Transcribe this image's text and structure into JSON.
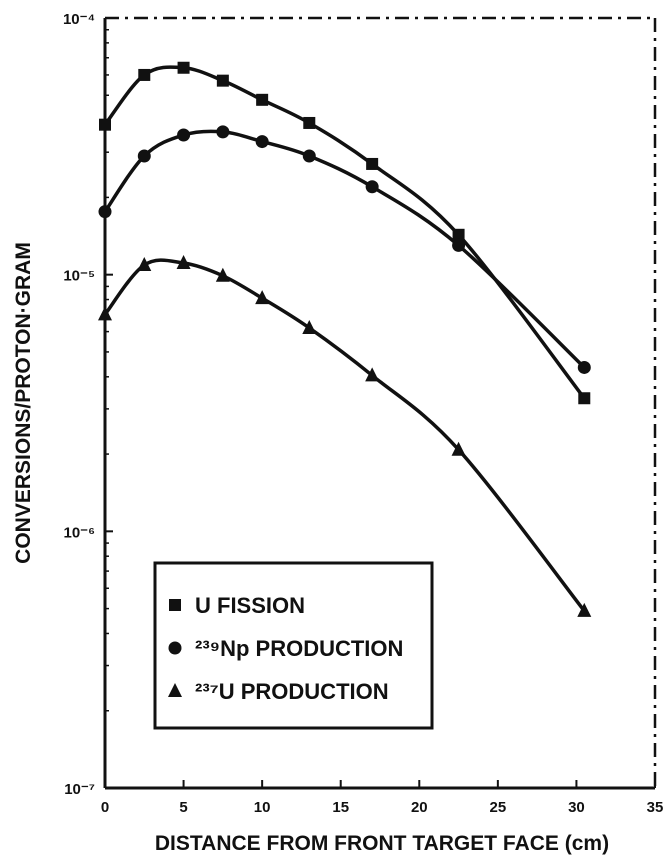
{
  "chart_data": {
    "type": "line",
    "ylabel": "CONVERSIONS/PROTON·GRAM",
    "xlabel": "DISTANCE FROM FRONT TARGET FACE (cm)",
    "log_y": true,
    "xlim": [
      0,
      35
    ],
    "xticks": [
      0,
      5,
      10,
      15,
      20,
      25,
      30,
      35
    ],
    "ylim": [
      1e-07,
      0.0001
    ],
    "yticks": [
      {
        "value": 0.0001,
        "label": "10⁻⁴"
      },
      {
        "value": 1e-05,
        "label": "10⁻⁵"
      },
      {
        "value": 1e-06,
        "label": "10⁻⁶"
      },
      {
        "value": 1e-07,
        "label": "10⁻⁷"
      }
    ],
    "legend": "lower left",
    "x": [
      0,
      2.5,
      5,
      7.5,
      10,
      13,
      17,
      22.5,
      30.5
    ],
    "series": [
      {
        "name": "U FISSION",
        "color": "#111111",
        "marker": "square",
        "values": [
          3.84e-05,
          6e-05,
          6.4e-05,
          5.7e-05,
          4.8e-05,
          3.9e-05,
          2.7e-05,
          1.43e-05,
          3.3e-06
        ]
      },
      {
        "name": "²³⁹Np PRODUCTION",
        "color": "#111111",
        "marker": "circle",
        "values": [
          1.76e-05,
          2.9e-05,
          3.5e-05,
          3.6e-05,
          3.3e-05,
          2.9e-05,
          2.2e-05,
          1.3e-05,
          4.35e-06
        ]
      },
      {
        "name": "²³⁷U PRODUCTION",
        "color": "#111111",
        "marker": "triangle",
        "values": [
          7e-06,
          1.09e-05,
          1.11e-05,
          9.9e-06,
          8.1e-06,
          6.2e-06,
          4.05e-06,
          2.08e-06,
          4.9e-07
        ]
      }
    ]
  }
}
